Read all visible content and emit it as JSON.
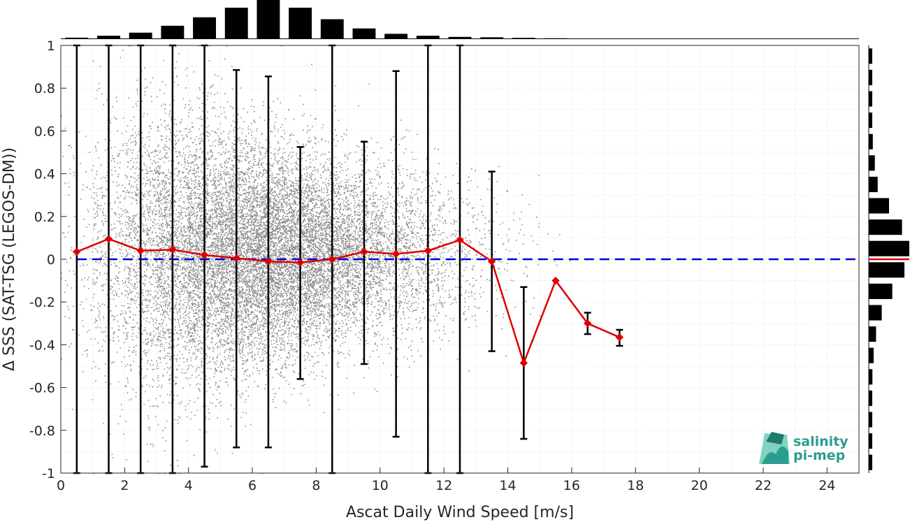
{
  "chart_data": {
    "type": "scatter",
    "xlabel": "Ascat Daily Wind Speed [m/s]",
    "ylabel": "Δ SSS (SAT-TSG (LEGOS-DM))",
    "xlim": [
      0,
      25
    ],
    "ylim": [
      -1,
      1
    ],
    "xticks": [
      "0",
      "2",
      "4",
      "6",
      "8",
      "10",
      "12",
      "14",
      "16",
      "18",
      "20",
      "22",
      "24"
    ],
    "xtick_values": [
      0,
      2,
      4,
      6,
      8,
      10,
      12,
      14,
      16,
      18,
      20,
      22,
      24
    ],
    "yticks": [
      "-1",
      "-0.8",
      "-0.6",
      "-0.4",
      "-0.2",
      "0",
      "0.2",
      "0.4",
      "0.6",
      "0.8",
      "1"
    ],
    "ytick_values": [
      -1,
      -0.8,
      -0.6,
      -0.4,
      -0.2,
      0,
      0.2,
      0.4,
      0.6,
      0.8,
      1
    ],
    "grid": true,
    "scatter_color": "#808080",
    "median_color": "#dd0000",
    "zero_line_color": "#0000dd",
    "errorbar_color": "#000000",
    "median_series": {
      "x": [
        0.5,
        1.5,
        2.5,
        3.5,
        4.5,
        5.5,
        6.5,
        7.5,
        8.5,
        9.5,
        10.5,
        11.5,
        12.5,
        13.5,
        14.5,
        15.5,
        16.5,
        17.5
      ],
      "y": [
        0.035,
        0.095,
        0.04,
        0.045,
        0.02,
        0.005,
        -0.01,
        -0.015,
        0.0,
        0.035,
        0.025,
        0.04,
        0.09,
        -0.01,
        -0.485,
        -0.1,
        -0.3,
        -0.365
      ]
    },
    "error_bars": [
      {
        "x": 0.5,
        "low": -1.0,
        "high": 1.0
      },
      {
        "x": 1.5,
        "low": -1.0,
        "high": 1.0
      },
      {
        "x": 2.5,
        "low": -1.0,
        "high": 1.0
      },
      {
        "x": 3.5,
        "low": -1.0,
        "high": 1.0
      },
      {
        "x": 4.5,
        "low": -0.97,
        "high": 1.0
      },
      {
        "x": 5.5,
        "low": -0.88,
        "high": 0.885
      },
      {
        "x": 6.5,
        "low": -0.88,
        "high": 0.855
      },
      {
        "x": 7.5,
        "low": -0.56,
        "high": 0.525
      },
      {
        "x": 8.5,
        "low": -1.0,
        "high": 1.0
      },
      {
        "x": 9.5,
        "low": -0.49,
        "high": 0.55
      },
      {
        "x": 10.5,
        "low": -0.83,
        "high": 0.88
      },
      {
        "x": 11.5,
        "low": -1.0,
        "high": 1.0
      },
      {
        "x": 12.5,
        "low": -1.0,
        "high": 1.0
      },
      {
        "x": 13.5,
        "low": -0.43,
        "high": 0.41
      },
      {
        "x": 14.5,
        "low": -0.84,
        "high": -0.13
      },
      {
        "x": 16.5,
        "low": -0.35,
        "high": -0.25
      },
      {
        "x": 17.5,
        "low": -0.405,
        "high": -0.33
      }
    ],
    "x_histogram": {
      "bin_centers": [
        0.5,
        1.5,
        2.5,
        3.5,
        4.5,
        5.5,
        6.5,
        7.5,
        8.5,
        9.5,
        10.5,
        11.5,
        12.5,
        13.5,
        14.5,
        15.5
      ],
      "relative_counts": [
        0.02,
        0.07,
        0.15,
        0.33,
        0.55,
        0.8,
        1.0,
        0.8,
        0.5,
        0.26,
        0.12,
        0.07,
        0.04,
        0.03,
        0.015,
        0.005
      ]
    },
    "y_histogram": {
      "bin_centers": [
        0.95,
        0.85,
        0.75,
        0.65,
        0.55,
        0.45,
        0.35,
        0.25,
        0.15,
        0.05,
        -0.05,
        -0.15,
        -0.25,
        -0.35,
        -0.45,
        -0.55,
        -0.65,
        -0.75,
        -0.85,
        -0.95
      ],
      "relative_counts": [
        0.05,
        0.06,
        0.07,
        0.08,
        0.1,
        0.15,
        0.22,
        0.5,
        0.82,
        1.0,
        0.88,
        0.58,
        0.32,
        0.18,
        0.12,
        0.09,
        0.07,
        0.06,
        0.05,
        0.04
      ],
      "median_color": "#dd0000"
    },
    "logo": {
      "line1": "salinity",
      "line2": "pi-mep"
    }
  }
}
